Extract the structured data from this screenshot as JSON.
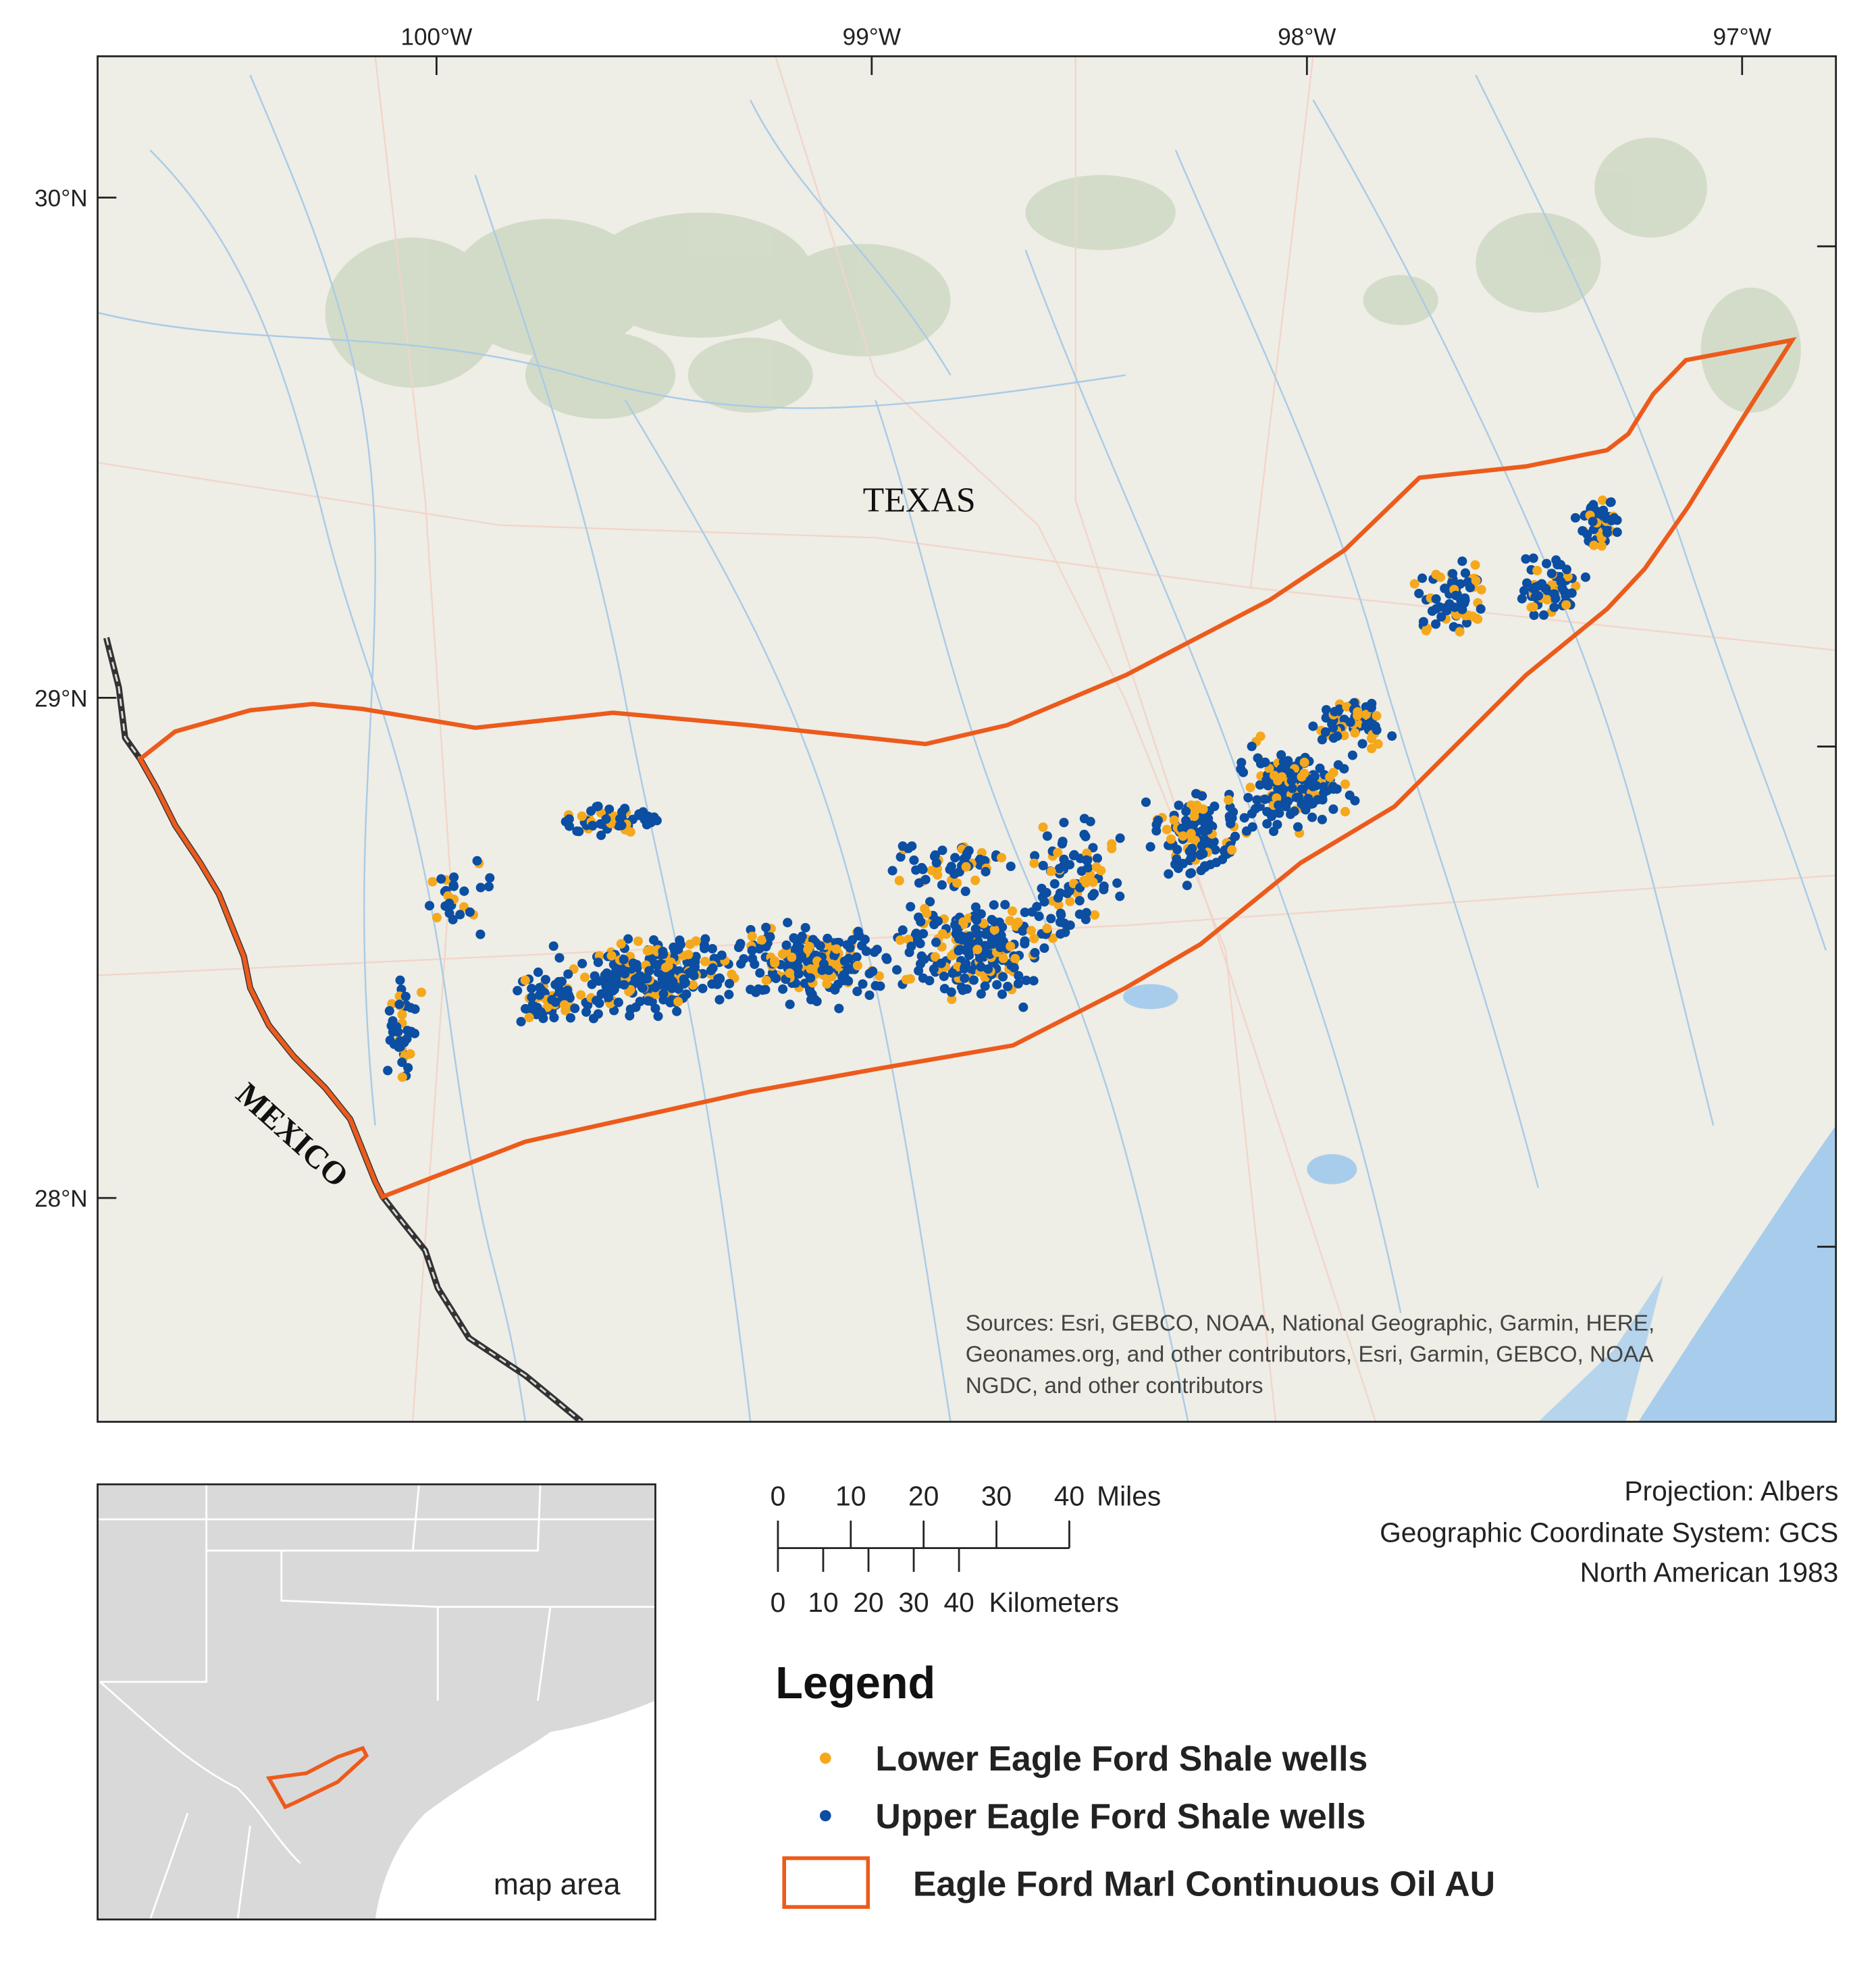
{
  "map": {
    "longitude_labels": [
      "100°W",
      "99°W",
      "98°W",
      "97°W"
    ],
    "latitude_labels": [
      "30°N",
      "29°N",
      "28°N"
    ],
    "place_labels": {
      "state": "TEXAS",
      "country": "MEXICO"
    },
    "sources": [
      "Sources: Esri, GEBCO, NOAA, National Geographic, Garmin, HERE,",
      "Geonames.org, and other contributors, Esri, Garmin, GEBCO, NOAA",
      "NGDC, and other contributors"
    ],
    "scale_bar": {
      "miles": {
        "ticks": [
          0,
          10,
          20,
          30,
          40
        ],
        "unit": "Miles"
      },
      "kilometers": {
        "ticks": [
          0,
          10,
          20,
          30,
          40
        ],
        "unit": "Kilometers"
      }
    },
    "projection": [
      "Projection: Albers",
      "Geographic Coordinate System: GCS",
      "North American 1983"
    ],
    "legend": {
      "title": "Legend",
      "items": [
        {
          "label": "Lower Eagle Ford Shale wells",
          "color": "#f5a81c"
        },
        {
          "label": "Upper Eagle Ford Shale wells",
          "color": "#0b4ea2"
        },
        {
          "label": "Eagle Ford Marl Continuous Oil AU",
          "color": "#ec5b1c"
        }
      ]
    },
    "inset": {
      "label": "map area"
    }
  }
}
